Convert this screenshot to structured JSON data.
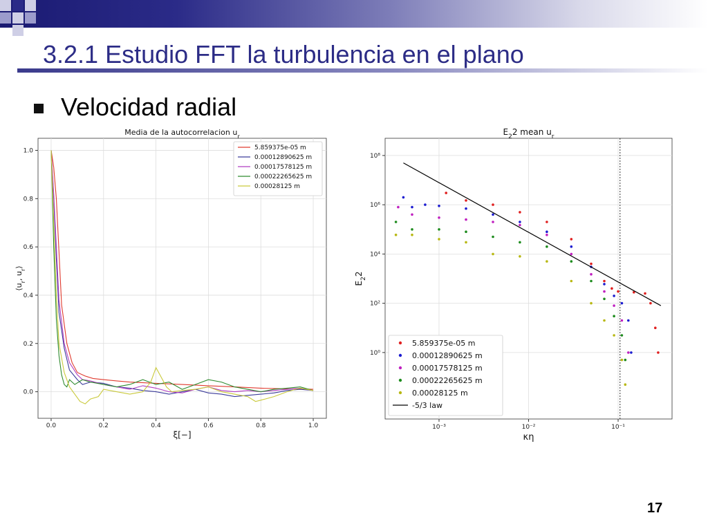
{
  "slide": {
    "title": "3.2.1 Estudio FFT la turbulencia en el plano",
    "bullet": "Velocidad radial",
    "page_number": "17",
    "colors": {
      "title": "#2c2c86",
      "header_dark": "#1a1a72"
    }
  },
  "chart_data": [
    {
      "type": "line",
      "title": "Media de la autocorrelacion u_r",
      "xlabel": "ξ[−]",
      "ylabel": "⟨u_r, u_r⟩",
      "xlim": [
        -0.05,
        1.05
      ],
      "ylim": [
        -0.11,
        1.05
      ],
      "x_ticks": [
        0.0,
        0.2,
        0.4,
        0.6,
        0.8,
        1.0
      ],
      "y_ticks": [
        0.0,
        0.2,
        0.4,
        0.6,
        0.8,
        1.0
      ],
      "x_tick_labels": [
        "0.0",
        "0.2",
        "0.4",
        "0.6",
        "0.8",
        "1.0"
      ],
      "y_tick_labels": [
        "0.0",
        "0.2",
        "0.4",
        "0.6",
        "0.8",
        "1.0"
      ],
      "grid": true,
      "legend": "top-right",
      "series": [
        {
          "name": "5.859375e-05 m",
          "color": "#e03a2e",
          "x": [
            0,
            0.01,
            0.02,
            0.03,
            0.04,
            0.06,
            0.08,
            0.1,
            0.13,
            0.16,
            0.2,
            0.25,
            0.3,
            0.4,
            0.5,
            0.6,
            0.7,
            0.8,
            0.9,
            0.95,
            1.0
          ],
          "y": [
            1.0,
            0.93,
            0.8,
            0.58,
            0.36,
            0.2,
            0.12,
            0.08,
            0.065,
            0.055,
            0.05,
            0.045,
            0.04,
            0.035,
            0.03,
            0.025,
            0.02,
            0.015,
            0.012,
            0.012,
            0.01
          ]
        },
        {
          "name": "0.00012890625 m",
          "color": "#3a3a9a",
          "x": [
            0,
            0.01,
            0.02,
            0.03,
            0.05,
            0.07,
            0.1,
            0.12,
            0.15,
            0.2,
            0.25,
            0.3,
            0.35,
            0.4,
            0.45,
            0.5,
            0.55,
            0.6,
            0.65,
            0.7,
            0.75,
            0.8,
            0.85,
            0.9,
            0.95,
            1.0
          ],
          "y": [
            1.0,
            0.8,
            0.55,
            0.33,
            0.18,
            0.09,
            0.05,
            0.03,
            0.04,
            0.035,
            0.02,
            0.015,
            0.005,
            0.0,
            -0.01,
            0.0,
            0.01,
            -0.005,
            -0.01,
            -0.02,
            -0.015,
            -0.01,
            -0.005,
            0.005,
            0.01,
            0.005
          ]
        },
        {
          "name": "0.00017578125 m",
          "color": "#b03cc0",
          "x": [
            0,
            0.01,
            0.02,
            0.03,
            0.05,
            0.07,
            0.1,
            0.12,
            0.15,
            0.2,
            0.25,
            0.3,
            0.35,
            0.4,
            0.45,
            0.5,
            0.55,
            0.6,
            0.65,
            0.7,
            0.75,
            0.8,
            0.85,
            0.9,
            0.95,
            1.0
          ],
          "y": [
            1.0,
            0.82,
            0.6,
            0.38,
            0.2,
            0.12,
            0.07,
            0.05,
            0.045,
            0.03,
            0.02,
            0.01,
            0.025,
            0.015,
            0.0,
            -0.005,
            0.01,
            0.02,
            0.005,
            0.0,
            0.005,
            0.0,
            0.005,
            0.01,
            0.015,
            0.005
          ]
        },
        {
          "name": "0.00022265625 m",
          "color": "#2e8a2e",
          "x": [
            0,
            0.01,
            0.02,
            0.03,
            0.04,
            0.05,
            0.06,
            0.07,
            0.09,
            0.12,
            0.15,
            0.2,
            0.25,
            0.3,
            0.35,
            0.4,
            0.45,
            0.5,
            0.55,
            0.6,
            0.65,
            0.7,
            0.75,
            0.8,
            0.85,
            0.9,
            0.95,
            1.0
          ],
          "y": [
            1.0,
            0.6,
            0.3,
            0.15,
            0.07,
            0.03,
            0.02,
            0.05,
            0.03,
            0.05,
            0.04,
            0.03,
            0.02,
            0.03,
            0.05,
            0.03,
            0.04,
            0.01,
            0.03,
            0.05,
            0.04,
            0.02,
            0.01,
            0.0,
            0.01,
            0.015,
            0.02,
            0.005
          ]
        },
        {
          "name": "0.00028125 m",
          "color": "#c9c93a",
          "x": [
            0,
            0.01,
            0.02,
            0.03,
            0.05,
            0.07,
            0.09,
            0.11,
            0.13,
            0.15,
            0.18,
            0.2,
            0.25,
            0.3,
            0.35,
            0.38,
            0.4,
            0.42,
            0.44,
            0.46,
            0.5,
            0.55,
            0.6,
            0.65,
            0.7,
            0.75,
            0.78,
            0.8,
            0.85,
            0.9,
            0.95,
            1.0
          ],
          "y": [
            1.0,
            0.7,
            0.4,
            0.2,
            0.08,
            0.02,
            -0.01,
            -0.04,
            -0.05,
            -0.03,
            -0.02,
            0.01,
            0.0,
            -0.01,
            0.0,
            0.04,
            0.1,
            0.06,
            0.02,
            0.0,
            0.005,
            0.01,
            0.02,
            0.0,
            -0.01,
            -0.02,
            -0.04,
            -0.035,
            -0.02,
            0.0,
            0.015,
            0.005
          ]
        }
      ]
    },
    {
      "type": "scatter",
      "title": "E_22 mean u_r",
      "xlabel": "κη",
      "ylabel": "E_22",
      "x_scale": "log",
      "y_scale": "log",
      "xlim": [
        0.00025,
        0.4
      ],
      "ylim": [
        0.002,
        500000000
      ],
      "x_ticks": [
        0.001,
        0.01,
        0.1
      ],
      "y_ticks": [
        1,
        100,
        10000,
        1000000,
        100000000
      ],
      "x_tick_labels": [
        "10⁻³",
        "10⁻²",
        "10⁻¹"
      ],
      "y_tick_labels": [
        "10⁰",
        "10²",
        "10⁴",
        "10⁶",
        "10⁸"
      ],
      "grid": true,
      "legend": "bottom-left",
      "vline_x": 0.105,
      "series": [
        {
          "name": "5.859375e-05 m",
          "color": "#e02020",
          "x": [
            0.0012,
            0.002,
            0.004,
            0.008,
            0.016,
            0.03,
            0.05,
            0.07,
            0.085,
            0.1,
            0.15,
            0.2,
            0.23,
            0.26,
            0.28
          ],
          "y": [
            3000000,
            1500000,
            1000000,
            500000,
            200000,
            40000,
            4000,
            800,
            400,
            300,
            280,
            250,
            100,
            10,
            1
          ]
        },
        {
          "name": "0.00012890625 m",
          "color": "#1c1cd0",
          "x": [
            0.0004,
            0.0005,
            0.0007,
            0.001,
            0.002,
            0.004,
            0.008,
            0.016,
            0.03,
            0.05,
            0.07,
            0.09,
            0.11,
            0.13,
            0.14
          ],
          "y": [
            2000000,
            800000,
            1000000,
            900000,
            700000,
            400000,
            200000,
            80000,
            20000,
            3000,
            600,
            200,
            100,
            20,
            1
          ]
        },
        {
          "name": "0.00017578125 m",
          "color": "#c020c0",
          "x": [
            0.00035,
            0.0005,
            0.001,
            0.002,
            0.004,
            0.008,
            0.016,
            0.03,
            0.05,
            0.07,
            0.09,
            0.11,
            0.13
          ],
          "y": [
            800000,
            400000,
            300000,
            250000,
            200000,
            150000,
            60000,
            10000,
            1500,
            300,
            80,
            20,
            1
          ]
        },
        {
          "name": "0.00022265625 m",
          "color": "#1e8c1e",
          "x": [
            0.00033,
            0.0005,
            0.001,
            0.002,
            0.004,
            0.008,
            0.016,
            0.03,
            0.05,
            0.07,
            0.09,
            0.11,
            0.12
          ],
          "y": [
            200000,
            100000,
            100000,
            80000,
            50000,
            30000,
            20000,
            5000,
            800,
            150,
            30,
            5,
            0.5
          ]
        },
        {
          "name": "0.00028125 m",
          "color": "#b8b814",
          "x": [
            0.00033,
            0.0005,
            0.001,
            0.002,
            0.004,
            0.008,
            0.016,
            0.03,
            0.05,
            0.07,
            0.09,
            0.11,
            0.12
          ],
          "y": [
            60000,
            60000,
            40000,
            30000,
            10000,
            8000,
            5000,
            800,
            100,
            20,
            5,
            0.5,
            0.05
          ]
        },
        {
          "name": "-5/3 law",
          "color": "#000000",
          "kind": "line",
          "x": [
            0.0004,
            0.3
          ],
          "y": [
            50000000,
            80
          ]
        }
      ]
    }
  ]
}
